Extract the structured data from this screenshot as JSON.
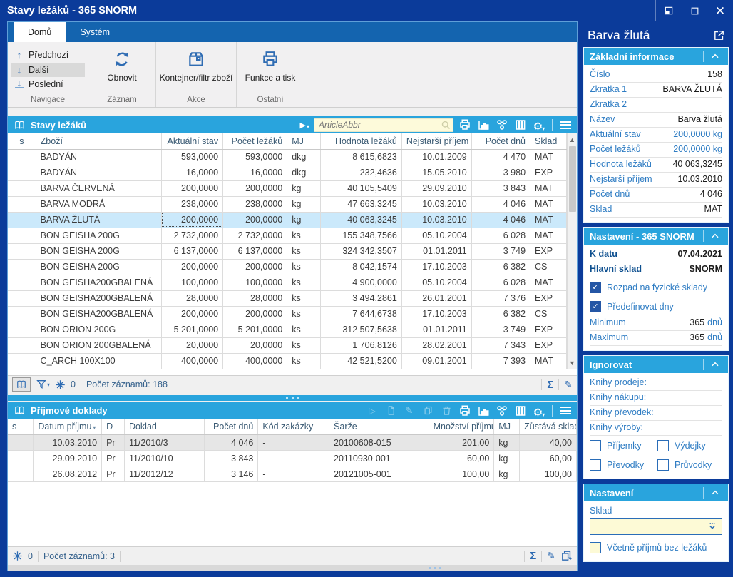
{
  "titlebar": {
    "title": "Stavy ležáků - 365 SNORM"
  },
  "ribbon": {
    "tabs": [
      {
        "label": "Domů",
        "active": true
      },
      {
        "label": "Systém",
        "active": false
      }
    ],
    "groups": [
      {
        "label": "Navigace",
        "items": [
          {
            "label": "Předchozí"
          },
          {
            "label": "Další",
            "highlighted": true
          },
          {
            "label": "Poslední"
          }
        ]
      },
      {
        "label": "Záznam",
        "items": [
          {
            "label": "Obnovit"
          }
        ]
      },
      {
        "label": "Akce",
        "items": [
          {
            "label": "Kontejner/filtr zboží"
          }
        ]
      },
      {
        "label": "Ostatní",
        "items": [
          {
            "label": "Funkce a tisk"
          }
        ]
      }
    ]
  },
  "main_grid": {
    "title": "Stavy ležáků",
    "search_placeholder": "ArticleAbbr",
    "columns": [
      "s",
      "Zboží",
      "Aktuální stav",
      "Počet ležáků",
      "MJ",
      "Hodnota ležáků",
      "Nejstarší příjem",
      "Počet dnů",
      "Sklad"
    ],
    "rows": [
      [
        "BADYÁN",
        "593,0000",
        "593,0000",
        "dkg",
        "8 615,6823",
        "10.01.2009",
        "4 470",
        "MAT"
      ],
      [
        "BADYÁN",
        "16,0000",
        "16,0000",
        "dkg",
        "232,4636",
        "15.05.2010",
        "3 980",
        "EXP"
      ],
      [
        "BARVA ČERVENÁ",
        "200,0000",
        "200,0000",
        "kg",
        "40 105,5409",
        "29.09.2010",
        "3 843",
        "MAT"
      ],
      [
        "BARVA MODRÁ",
        "238,0000",
        "238,0000",
        "kg",
        "47 663,3245",
        "10.03.2010",
        "4 046",
        "MAT"
      ],
      [
        "BARVA ŽLUTÁ",
        "200,0000",
        "200,0000",
        "kg",
        "40 063,3245",
        "10.03.2010",
        "4 046",
        "MAT"
      ],
      [
        "BON GEISHA 200G",
        "2 732,0000",
        "2 732,0000",
        "ks",
        "155 348,7566",
        "05.10.2004",
        "6 028",
        "MAT"
      ],
      [
        "BON GEISHA 200G",
        "6 137,0000",
        "6 137,0000",
        "ks",
        "324 342,3507",
        "01.01.2011",
        "3 749",
        "EXP"
      ],
      [
        "BON GEISHA 200G",
        "200,0000",
        "200,0000",
        "ks",
        "8 042,1574",
        "17.10.2003",
        "6 382",
        "CS"
      ],
      [
        "BON GEISHA200GBALENÁ",
        "100,0000",
        "100,0000",
        "ks",
        "4 900,0000",
        "05.10.2004",
        "6 028",
        "MAT"
      ],
      [
        "BON GEISHA200GBALENÁ",
        "28,0000",
        "28,0000",
        "ks",
        "3 494,2861",
        "26.01.2001",
        "7 376",
        "EXP"
      ],
      [
        "BON GEISHA200GBALENÁ",
        "200,0000",
        "200,0000",
        "ks",
        "7 644,6738",
        "17.10.2003",
        "6 382",
        "CS"
      ],
      [
        "BON ORION 200G",
        "5 201,0000",
        "5 201,0000",
        "ks",
        "312 507,5638",
        "01.01.2011",
        "3 749",
        "EXP"
      ],
      [
        "BON ORION 200GBALENÁ",
        "20,0000",
        "20,0000",
        "ks",
        "1 706,8126",
        "28.02.2001",
        "7 343",
        "EXP"
      ],
      [
        "C_ARCH 100X100",
        "400,0000",
        "400,0000",
        "ks",
        "42 521,5200",
        "09.01.2001",
        "7 393",
        "MAT"
      ]
    ],
    "selected_row": 4,
    "status": {
      "flake_count": "0",
      "record_count": "Počet záznamů: 188"
    }
  },
  "receipts_grid": {
    "title": "Příjmové doklady",
    "columns": [
      "s",
      "Datum příjmu",
      "D",
      "Doklad",
      "Počet dnů",
      "Kód zakázky",
      "Šarže",
      "Množství příjmu",
      "MJ",
      "Zůstává skladem"
    ],
    "sort_column": "Datum příjmu",
    "rows": [
      [
        "10.03.2010",
        "Pr",
        "11/2010/3",
        "4 046",
        "-",
        "20100608-015",
        "201,00",
        "kg",
        "40,00"
      ],
      [
        "29.09.2010",
        "Pr",
        "11/2010/10",
        "3 843",
        "-",
        "20110930-001",
        "60,00",
        "kg",
        "60,00"
      ],
      [
        "26.08.2012",
        "Pr",
        "11/2012/12",
        "3 146",
        "-",
        "20121005-001",
        "100,00",
        "kg",
        "100,00"
      ]
    ],
    "highlighted_row": 0,
    "status": {
      "flake_count": "0",
      "record_count": "Počet záznamů: 3"
    }
  },
  "side_panel": {
    "title": "Barva žlutá",
    "basic": {
      "header": "Základní informace",
      "fields": [
        {
          "label": "Číslo",
          "value": "158"
        },
        {
          "label": "Zkratka 1",
          "value": "BARVA ŽLUTÁ"
        },
        {
          "label": "Zkratka 2",
          "value": ""
        },
        {
          "label": "Název",
          "value": "Barva žlutá"
        },
        {
          "label": "Aktuální stav",
          "value": "200,0000 kg",
          "accent": true
        },
        {
          "label": "Počet ležáků",
          "value": "200,0000 kg",
          "accent": true
        },
        {
          "label": "Hodnota ležáků",
          "value": "40 063,3245"
        },
        {
          "label": "Nejstarší příjem",
          "value": "10.03.2010"
        },
        {
          "label": "Počet dnů",
          "value": "4 046"
        },
        {
          "label": "Sklad",
          "value": "MAT"
        }
      ]
    },
    "settings": {
      "header": "Nastavení - 365 SNORM",
      "fields": [
        {
          "label": "K datu",
          "value": "07.04.2021",
          "bold": true
        },
        {
          "label": "Hlavní sklad",
          "value": "SNORM",
          "bold": true
        }
      ],
      "checkboxes": [
        {
          "label": "Rozpad na fyzické sklady",
          "checked": true
        },
        {
          "label": "Předefinovat dny",
          "checked": true
        }
      ],
      "range_fields": [
        {
          "label": "Minimum",
          "value": "365",
          "unit": "dnů"
        },
        {
          "label": "Maximum",
          "value": "365",
          "unit": "dnů"
        }
      ]
    },
    "ignore": {
      "header": "Ignorovat",
      "fields": [
        {
          "label": "Knihy prodeje:"
        },
        {
          "label": "Knihy nákupu:"
        },
        {
          "label": "Knihy převodek:"
        },
        {
          "label": "Knihy výroby:"
        }
      ],
      "checkboxes": [
        {
          "label": "Příjemky",
          "checked": false
        },
        {
          "label": "Výdejky",
          "checked": false
        },
        {
          "label": "Převodky",
          "checked": false
        },
        {
          "label": "Průvodky",
          "checked": false
        }
      ]
    },
    "settings2": {
      "header": "Nastavení",
      "sklad_label": "Sklad",
      "sklad_value": "",
      "checkbox": {
        "label": "Včetně příjmů bez ležáků",
        "checked": false
      }
    }
  },
  "colors": {
    "navy": "#0b3b9a",
    "tab_blue": "#1464af",
    "header_cyan": "#29a4dd",
    "selected_row": "#cbe9fb",
    "pale_yellow_input": "#fdfada",
    "accent_blue": "#2e7cc3"
  }
}
